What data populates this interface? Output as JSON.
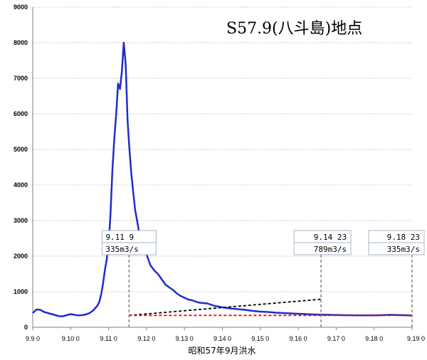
{
  "chart_data": {
    "type": "line",
    "title": "S57.9(八斗島)地点",
    "xlabel": "昭和57年9月洪水",
    "ylabel": "",
    "xlim": [
      0,
      100
    ],
    "ylim": [
      0,
      9000
    ],
    "grid": true,
    "yticks": [
      "0",
      "1000",
      "2000",
      "3000",
      "4000",
      "5000",
      "6000",
      "7000",
      "8000",
      "9000"
    ],
    "xticks": [
      "9.9 0",
      "9.10 0",
      "9.11 0",
      "9.12 0",
      "9.13 0",
      "9.14 0",
      "9.15 0",
      "9.16 0",
      "9.17 0",
      "9.18 0",
      "9.19 0"
    ],
    "series": [
      {
        "color": "#1f2ccc",
        "style": "solid",
        "x": [
          0,
          1,
          2,
          3,
          4,
          5,
          6,
          7,
          8,
          9,
          10,
          11,
          12,
          13,
          14,
          15,
          16,
          17,
          17.5,
          18,
          18.5,
          19,
          19.5,
          20,
          20.5,
          21,
          21.5,
          22,
          22.5,
          23,
          23.5,
          24,
          24.5,
          25,
          25.5,
          26,
          26.5,
          27,
          27.5,
          28,
          28.5,
          29,
          29.5,
          30,
          31,
          32,
          33,
          34,
          35,
          36,
          37,
          38,
          39,
          40,
          41,
          42,
          43,
          44,
          45,
          46,
          48,
          50,
          52,
          54,
          56,
          58,
          60,
          62,
          64,
          66,
          68,
          70,
          72,
          74,
          76,
          78,
          80,
          82,
          84,
          86,
          88,
          90,
          92,
          94,
          96,
          98,
          100
        ],
        "y": [
          400,
          500,
          490,
          430,
          400,
          370,
          340,
          310,
          310,
          340,
          370,
          350,
          335,
          340,
          360,
          400,
          480,
          600,
          700,
          900,
          1200,
          1600,
          1900,
          2300,
          3200,
          4400,
          5300,
          6000,
          6850,
          6700,
          7200,
          8000,
          7400,
          5800,
          5000,
          4300,
          3800,
          3300,
          3000,
          2700,
          2500,
          2400,
          2200,
          2050,
          1750,
          1600,
          1500,
          1350,
          1200,
          1120,
          1050,
          950,
          880,
          830,
          780,
          760,
          720,
          690,
          680,
          670,
          600,
          560,
          530,
          510,
          490,
          460,
          440,
          430,
          410,
          400,
          390,
          380,
          370,
          360,
          355,
          350,
          345,
          340,
          338,
          336,
          335,
          335,
          340,
          350,
          345,
          340,
          330
        ]
      },
      {
        "color": "#000000",
        "style": "dashed",
        "x": [
          25.4,
          76
        ],
        "y": [
          335,
          789
        ]
      },
      {
        "color": "#ff0000",
        "style": "dashed",
        "x": [
          25.4,
          100
        ],
        "y": [
          335,
          335
        ]
      }
    ],
    "annotations": [
      {
        "datetime": "9.11 9",
        "flow": "335m3/s",
        "x": 25.4
      },
      {
        "datetime": "9.14 23",
        "flow": "789m3/s",
        "x": 76
      },
      {
        "datetime": "9.18 23",
        "flow": "335m3/s",
        "x": 100
      }
    ],
    "colors": {
      "grid": "#c8c8c8",
      "axis": "#808080",
      "marker_line": "#808080"
    }
  }
}
